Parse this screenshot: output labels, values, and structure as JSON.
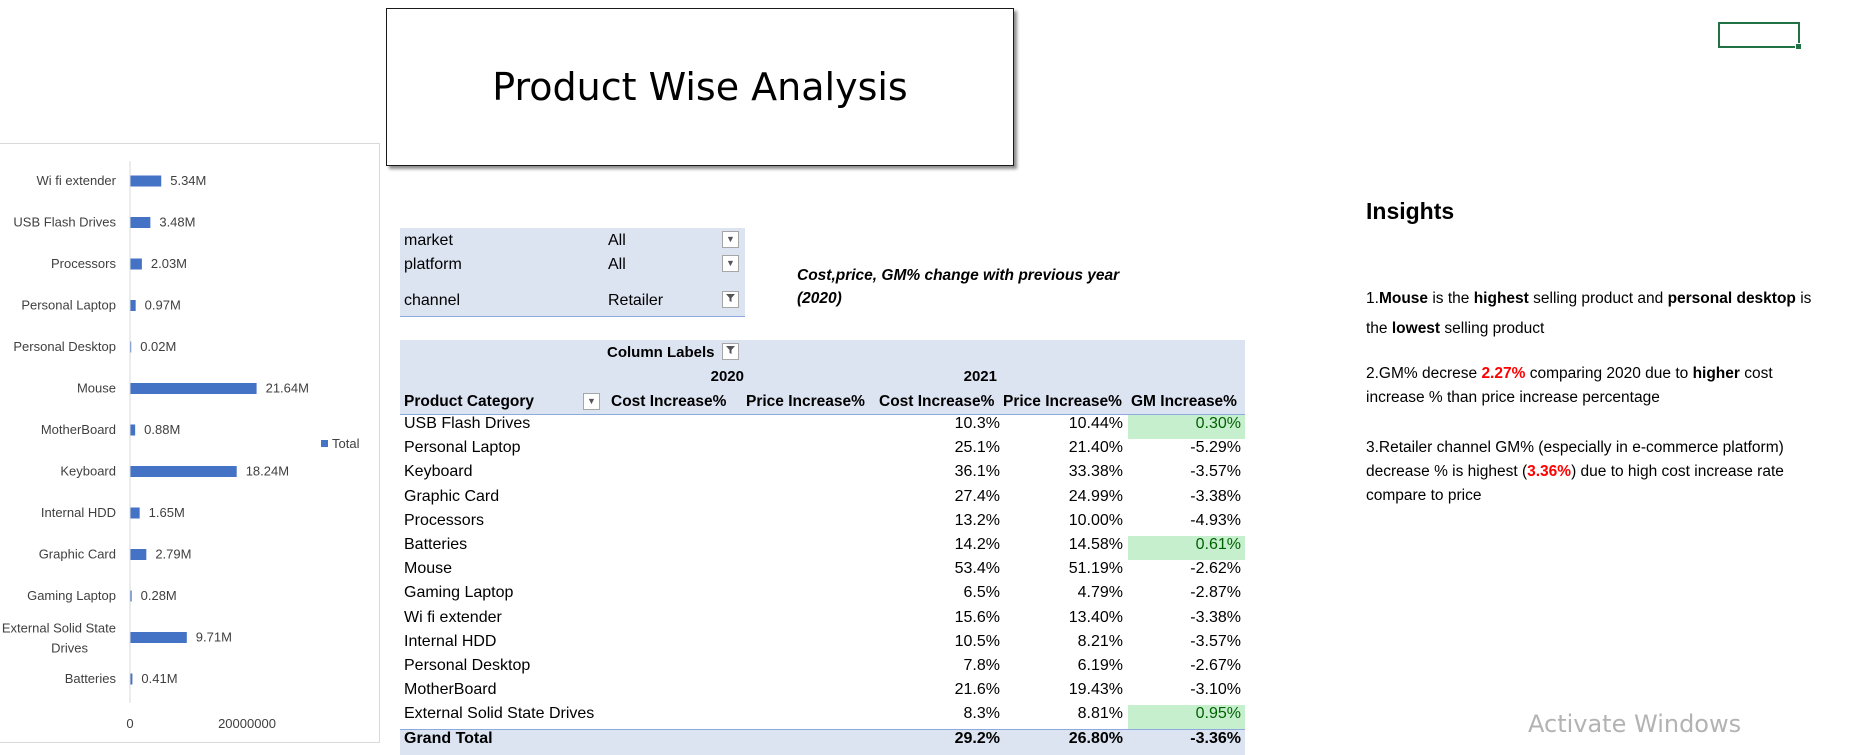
{
  "title": "Product Wise Analysis",
  "filters": [
    {
      "label": "market",
      "value": "All",
      "icon": "dropdown-icon"
    },
    {
      "label": "platform",
      "value": "All",
      "icon": "dropdown-icon"
    },
    {
      "label": "channel",
      "value": "Retailer",
      "icon": "filter-icon"
    }
  ],
  "subtitle": "Cost,price, GM% change with previous year (2020)",
  "pivot": {
    "column_labels": "Column Labels",
    "year_2020": "2020",
    "year_2021": "2021",
    "row_header": "Product Category",
    "columns": [
      "Cost Increase%",
      "Price Increase%",
      "Cost Increase%",
      "Price Increase%",
      "GM Increase%"
    ],
    "rows": [
      {
        "category": "USB Flash Drives",
        "cost": "10.3%",
        "price": "10.44%",
        "gm": "0.30%",
        "highlight": true
      },
      {
        "category": "Personal Laptop",
        "cost": "25.1%",
        "price": "21.40%",
        "gm": "-5.29%",
        "highlight": false
      },
      {
        "category": "Keyboard",
        "cost": "36.1%",
        "price": "33.38%",
        "gm": "-3.57%",
        "highlight": false
      },
      {
        "category": "Graphic Card",
        "cost": "27.4%",
        "price": "24.99%",
        "gm": "-3.38%",
        "highlight": false
      },
      {
        "category": "Processors",
        "cost": "13.2%",
        "price": "10.00%",
        "gm": "-4.93%",
        "highlight": false
      },
      {
        "category": "Batteries",
        "cost": "14.2%",
        "price": "14.58%",
        "gm": "0.61%",
        "highlight": true
      },
      {
        "category": "Mouse",
        "cost": "53.4%",
        "price": "51.19%",
        "gm": "-2.62%",
        "highlight": false
      },
      {
        "category": "Gaming Laptop",
        "cost": "6.5%",
        "price": "4.79%",
        "gm": "-2.87%",
        "highlight": false
      },
      {
        "category": "Wi fi extender",
        "cost": "15.6%",
        "price": "13.40%",
        "gm": "-3.38%",
        "highlight": false
      },
      {
        "category": "Internal HDD",
        "cost": "10.5%",
        "price": "8.21%",
        "gm": "-3.57%",
        "highlight": false
      },
      {
        "category": "Personal Desktop",
        "cost": "7.8%",
        "price": "6.19%",
        "gm": "-2.67%",
        "highlight": false
      },
      {
        "category": "MotherBoard",
        "cost": "21.6%",
        "price": "19.43%",
        "gm": "-3.10%",
        "highlight": false
      },
      {
        "category": "External Solid State Drives",
        "cost": "8.3%",
        "price": "8.81%",
        "gm": "0.95%",
        "highlight": true
      }
    ],
    "total": {
      "category": "Grand Total",
      "cost": "29.2%",
      "price": "26.80%",
      "gm": "-3.36%"
    }
  },
  "insights": {
    "title": "Insights",
    "i1": {
      "n": "1.",
      "b1": "Mouse",
      "t1": " is the ",
      "b2": "highest",
      "t2": " selling product and ",
      "b3": "personal desktop",
      "t3": " is the ",
      "b4": "lowest",
      "t4": " selling product"
    },
    "i2": {
      "t1": "2.GM% decrese ",
      "r1": "2.27%",
      "t2": " comparing 2020 due to ",
      "b1": "higher",
      "t3": " cost increase % than price increase percentage"
    },
    "i3": {
      "t1": "3.Retailer channel GM% (especially in e-commerce  platform) decrease % is highest (",
      "r1": "3.36%",
      "t2": ") due to high cost increase rate compare to price"
    }
  },
  "watermark": "Activate Windows",
  "colors": {
    "bar": "#4472c4",
    "header_bg": "#dce3f1",
    "positive_bg": "#c6efce",
    "positive_text": "#006100",
    "accent_red": "#ff0000"
  },
  "chart_data": {
    "type": "bar",
    "orientation": "horizontal",
    "categories": [
      "Wi fi extender",
      "USB Flash Drives",
      "Processors",
      "Personal Laptop",
      "Personal Desktop",
      "Mouse",
      "MotherBoard",
      "Keyboard",
      "Internal HDD",
      "Graphic Card",
      "Gaming Laptop",
      "External Solid State Drives",
      "Batteries"
    ],
    "values": [
      5340000,
      3480000,
      2030000,
      970000,
      20000,
      21640000,
      880000,
      18240000,
      1650000,
      2790000,
      280000,
      9710000,
      410000
    ],
    "data_labels": [
      "5.34M",
      "3.48M",
      "2.03M",
      "0.97M",
      "0.02M",
      "21.64M",
      "0.88M",
      "18.24M",
      "1.65M",
      "2.79M",
      "0.28M",
      "9.71M",
      "0.41M"
    ],
    "x_ticks": [
      "0",
      "20000000"
    ],
    "xlim": [
      0,
      40000000
    ],
    "legend": [
      {
        "name": "Total"
      }
    ],
    "legend_position": "right"
  }
}
